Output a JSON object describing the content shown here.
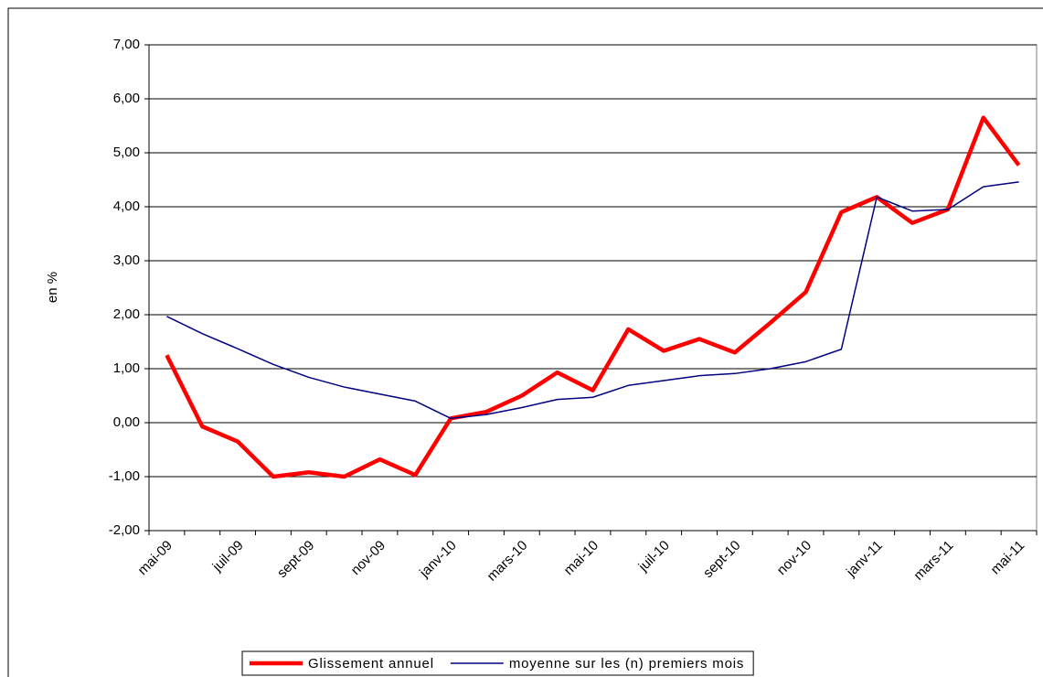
{
  "chart_data": {
    "type": "line",
    "ylabel": "en %",
    "categories": [
      "mai-09",
      null,
      "juil-09",
      null,
      "sept-09",
      null,
      "nov-09",
      null,
      "janv-10",
      null,
      "mars-10",
      null,
      "mai-10",
      null,
      "juil-10",
      null,
      "sept-10",
      null,
      "nov-10",
      null,
      "janv-11",
      null,
      "mars-11",
      null,
      "mai-11"
    ],
    "series": [
      {
        "name": "Glissement annuel",
        "color": "#ff0000",
        "values": [
          1.25,
          -0.07,
          -0.35,
          -1.0,
          -0.92,
          -1.0,
          -0.68,
          -0.97,
          0.08,
          0.2,
          0.5,
          0.93,
          0.6,
          1.73,
          1.33,
          1.55,
          1.3,
          1.85,
          2.42,
          3.9,
          4.18,
          3.7,
          3.95,
          5.65,
          4.77
        ]
      },
      {
        "name": "moyenne sur les (n) premiers mois",
        "color": "#000080",
        "values": [
          1.97,
          1.65,
          1.37,
          1.08,
          0.84,
          0.66,
          0.53,
          0.4,
          0.08,
          0.15,
          0.28,
          0.43,
          0.47,
          0.69,
          0.78,
          0.87,
          0.91,
          1.0,
          1.13,
          1.36,
          4.18,
          3.92,
          3.95,
          4.37,
          4.46
        ]
      }
    ],
    "ylim": [
      -2,
      7
    ],
    "yticks": [
      {
        "value": -2,
        "label": "-2,00"
      },
      {
        "value": -1,
        "label": "-1,00"
      },
      {
        "value": 0,
        "label": "0,00"
      },
      {
        "value": 1,
        "label": "1,00"
      },
      {
        "value": 2,
        "label": "2,00"
      },
      {
        "value": 3,
        "label": "3,00"
      },
      {
        "value": 4,
        "label": "4,00"
      },
      {
        "value": 5,
        "label": "5,00"
      },
      {
        "value": 6,
        "label": "6,00"
      },
      {
        "value": 7,
        "label": "7,00"
      }
    ],
    "grid": true,
    "legend": "bottom"
  }
}
